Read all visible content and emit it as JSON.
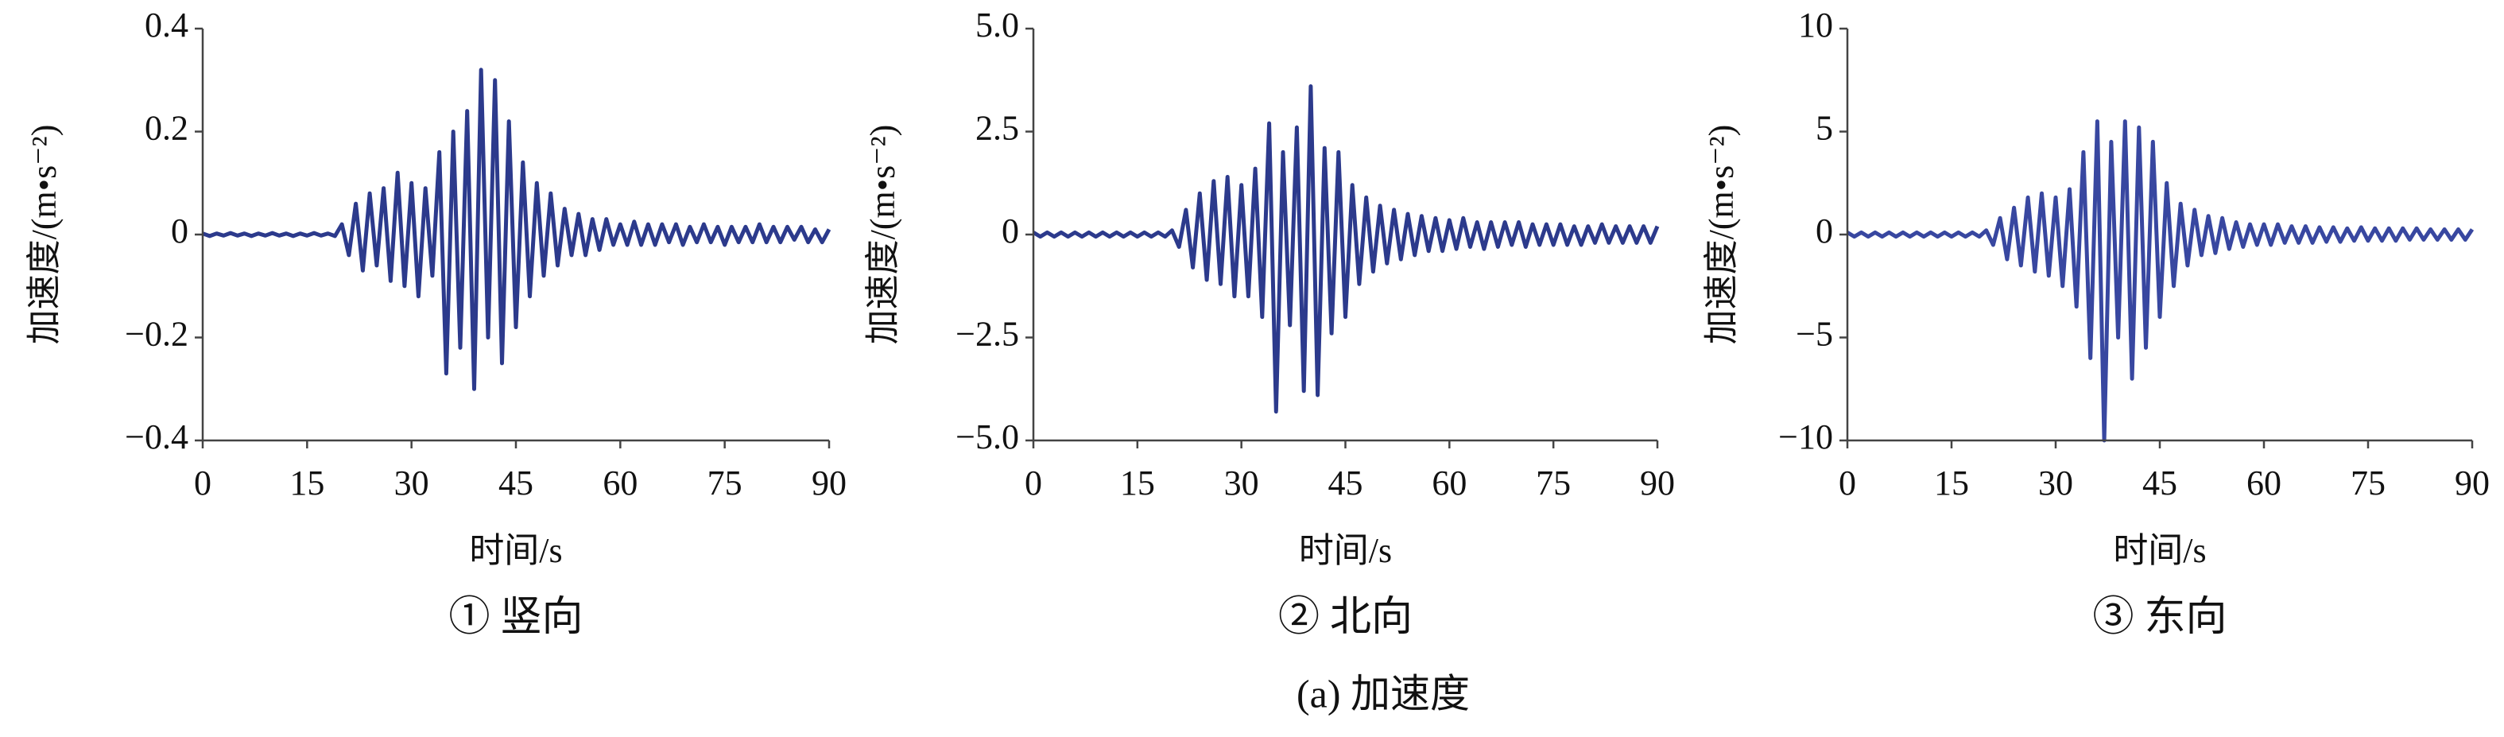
{
  "chart_data": [
    {
      "type": "line",
      "title": "① 竖向",
      "x_label": "时间/s",
      "y_label": "加速度/(m•s⁻²)",
      "color": "#2c3a8c",
      "x": [
        0,
        1,
        2,
        3,
        4,
        5,
        6,
        7,
        8,
        9,
        10,
        11,
        12,
        13,
        14,
        15,
        16,
        17,
        18,
        19,
        20,
        21,
        22,
        23,
        24,
        25,
        26,
        27,
        28,
        29,
        30,
        31,
        32,
        33,
        34,
        35,
        36,
        37,
        38,
        39,
        40,
        41,
        42,
        43,
        44,
        45,
        46,
        47,
        48,
        49,
        50,
        51,
        52,
        53,
        54,
        55,
        56,
        57,
        58,
        59,
        60,
        61,
        62,
        63,
        64,
        65,
        66,
        67,
        68,
        69,
        70,
        71,
        72,
        73,
        74,
        75,
        76,
        77,
        78,
        79,
        80,
        81,
        82,
        83,
        84,
        85,
        86,
        87,
        88,
        89,
        90
      ],
      "values": [
        0.002,
        -0.003,
        0.002,
        -0.002,
        0.003,
        -0.002,
        0.002,
        -0.003,
        0.002,
        -0.002,
        0.003,
        -0.002,
        0.002,
        -0.003,
        0.002,
        -0.002,
        0.003,
        -0.002,
        0.002,
        -0.003,
        0.02,
        -0.04,
        0.06,
        -0.07,
        0.08,
        -0.06,
        0.09,
        -0.09,
        0.12,
        -0.1,
        0.1,
        -0.12,
        0.09,
        -0.08,
        0.16,
        -0.27,
        0.2,
        -0.22,
        0.24,
        -0.3,
        0.32,
        -0.2,
        0.3,
        -0.25,
        0.22,
        -0.18,
        0.14,
        -0.12,
        0.1,
        -0.08,
        0.08,
        -0.06,
        0.05,
        -0.04,
        0.04,
        -0.04,
        0.03,
        -0.03,
        0.03,
        -0.02,
        0.02,
        -0.02,
        0.025,
        -0.02,
        0.02,
        -0.02,
        0.02,
        -0.015,
        0.02,
        -0.02,
        0.015,
        -0.015,
        0.02,
        -0.015,
        0.015,
        -0.02,
        0.015,
        -0.015,
        0.015,
        -0.015,
        0.02,
        -0.015,
        0.015,
        -0.015,
        0.015,
        -0.01,
        0.015,
        -0.015,
        0.01,
        -0.015,
        0.01
      ],
      "xlim": [
        0,
        90
      ],
      "xticks": [
        0,
        15,
        30,
        45,
        60,
        75,
        90
      ],
      "ylim": [
        -0.4,
        0.4
      ],
      "yticks": [
        0.4,
        0.2,
        0,
        {
          "value": -0.2,
          "label": "−0.2"
        },
        {
          "value": -0.4,
          "label": "−0.4"
        }
      ]
    },
    {
      "type": "line",
      "title": "② 北向",
      "x_label": "时间/s",
      "y_label": "加速度/(m•s⁻²)",
      "color": "#2c3a8c",
      "x": [
        0,
        1,
        2,
        3,
        4,
        5,
        6,
        7,
        8,
        9,
        10,
        11,
        12,
        13,
        14,
        15,
        16,
        17,
        18,
        19,
        20,
        21,
        22,
        23,
        24,
        25,
        26,
        27,
        28,
        29,
        30,
        31,
        32,
        33,
        34,
        35,
        36,
        37,
        38,
        39,
        40,
        41,
        42,
        43,
        44,
        45,
        46,
        47,
        48,
        49,
        50,
        51,
        52,
        53,
        54,
        55,
        56,
        57,
        58,
        59,
        60,
        61,
        62,
        63,
        64,
        65,
        66,
        67,
        68,
        69,
        70,
        71,
        72,
        73,
        74,
        75,
        76,
        77,
        78,
        79,
        80,
        81,
        82,
        83,
        84,
        85,
        86,
        87,
        88,
        89,
        90
      ],
      "values": [
        0.05,
        -0.05,
        0.05,
        -0.05,
        0.05,
        -0.05,
        0.05,
        -0.05,
        0.05,
        -0.05,
        0.05,
        -0.05,
        0.05,
        -0.05,
        0.05,
        -0.05,
        0.05,
        -0.05,
        0.05,
        -0.05,
        0.1,
        -0.3,
        0.6,
        -0.8,
        1.0,
        -1.1,
        1.3,
        -1.2,
        1.4,
        -1.5,
        1.2,
        -1.5,
        1.6,
        -2.0,
        2.7,
        -4.3,
        2.0,
        -2.2,
        2.6,
        -3.8,
        3.6,
        -3.9,
        2.1,
        -2.4,
        2.0,
        -2.0,
        1.2,
        -1.2,
        0.9,
        -0.9,
        0.7,
        -0.7,
        0.6,
        -0.6,
        0.5,
        -0.5,
        0.45,
        -0.4,
        0.4,
        -0.4,
        0.35,
        -0.35,
        0.4,
        -0.3,
        0.3,
        -0.35,
        0.3,
        -0.3,
        0.3,
        -0.25,
        0.3,
        -0.3,
        0.25,
        -0.25,
        0.25,
        -0.25,
        0.25,
        -0.25,
        0.2,
        -0.25,
        0.2,
        -0.2,
        0.25,
        -0.2,
        0.2,
        -0.2,
        0.2,
        -0.2,
        0.2,
        -0.2,
        0.2
      ],
      "xlim": [
        0,
        90
      ],
      "xticks": [
        0,
        15,
        30,
        45,
        60,
        75,
        90
      ],
      "ylim": [
        -5,
        5
      ],
      "yticks": [
        {
          "value": 5,
          "label": "5.0"
        },
        2.5,
        0,
        {
          "value": -2.5,
          "label": "−2.5"
        },
        {
          "value": -5,
          "label": "−5.0"
        }
      ]
    },
    {
      "type": "line",
      "title": "③ 东向",
      "x_label": "时间/s",
      "y_label": "加速度/(m•s⁻²)",
      "color": "#3847a0",
      "x": [
        0,
        1,
        2,
        3,
        4,
        5,
        6,
        7,
        8,
        9,
        10,
        11,
        12,
        13,
        14,
        15,
        16,
        17,
        18,
        19,
        20,
        21,
        22,
        23,
        24,
        25,
        26,
        27,
        28,
        29,
        30,
        31,
        32,
        33,
        34,
        35,
        36,
        37,
        38,
        39,
        40,
        41,
        42,
        43,
        44,
        45,
        46,
        47,
        48,
        49,
        50,
        51,
        52,
        53,
        54,
        55,
        56,
        57,
        58,
        59,
        60,
        61,
        62,
        63,
        64,
        65,
        66,
        67,
        68,
        69,
        70,
        71,
        72,
        73,
        74,
        75,
        76,
        77,
        78,
        79,
        80,
        81,
        82,
        83,
        84,
        85,
        86,
        87,
        88,
        89,
        90
      ],
      "values": [
        0.1,
        -0.1,
        0.1,
        -0.1,
        0.1,
        -0.1,
        0.1,
        -0.1,
        0.1,
        -0.1,
        0.1,
        -0.1,
        0.1,
        -0.1,
        0.1,
        -0.1,
        0.1,
        -0.1,
        0.1,
        -0.1,
        0.2,
        -0.5,
        0.8,
        -1.2,
        1.3,
        -1.5,
        1.8,
        -1.8,
        2.0,
        -2.0,
        1.8,
        -2.5,
        2.2,
        -3.5,
        4.0,
        -6.0,
        5.5,
        -10.0,
        4.5,
        -5.0,
        5.5,
        -7.0,
        5.2,
        -5.5,
        4.5,
        -4.0,
        2.5,
        -2.5,
        1.5,
        -1.5,
        1.2,
        -1.0,
        0.9,
        -0.9,
        0.8,
        -0.7,
        0.6,
        -0.6,
        0.5,
        -0.5,
        0.5,
        -0.5,
        0.5,
        -0.4,
        0.4,
        -0.4,
        0.4,
        -0.4,
        0.35,
        -0.35,
        0.35,
        -0.35,
        0.3,
        -0.3,
        0.35,
        -0.3,
        0.3,
        -0.3,
        0.3,
        -0.3,
        0.3,
        -0.25,
        0.3,
        -0.25,
        0.25,
        -0.25,
        0.25,
        -0.25,
        0.25,
        -0.25,
        0.25
      ],
      "xlim": [
        0,
        90
      ],
      "xticks": [
        0,
        15,
        30,
        45,
        60,
        75,
        90
      ],
      "ylim": [
        -10,
        10
      ],
      "yticks": [
        10,
        5,
        0,
        {
          "value": -5,
          "label": "−5"
        },
        {
          "value": -10,
          "label": "−10"
        }
      ]
    }
  ],
  "caption": "(a) 加速度"
}
